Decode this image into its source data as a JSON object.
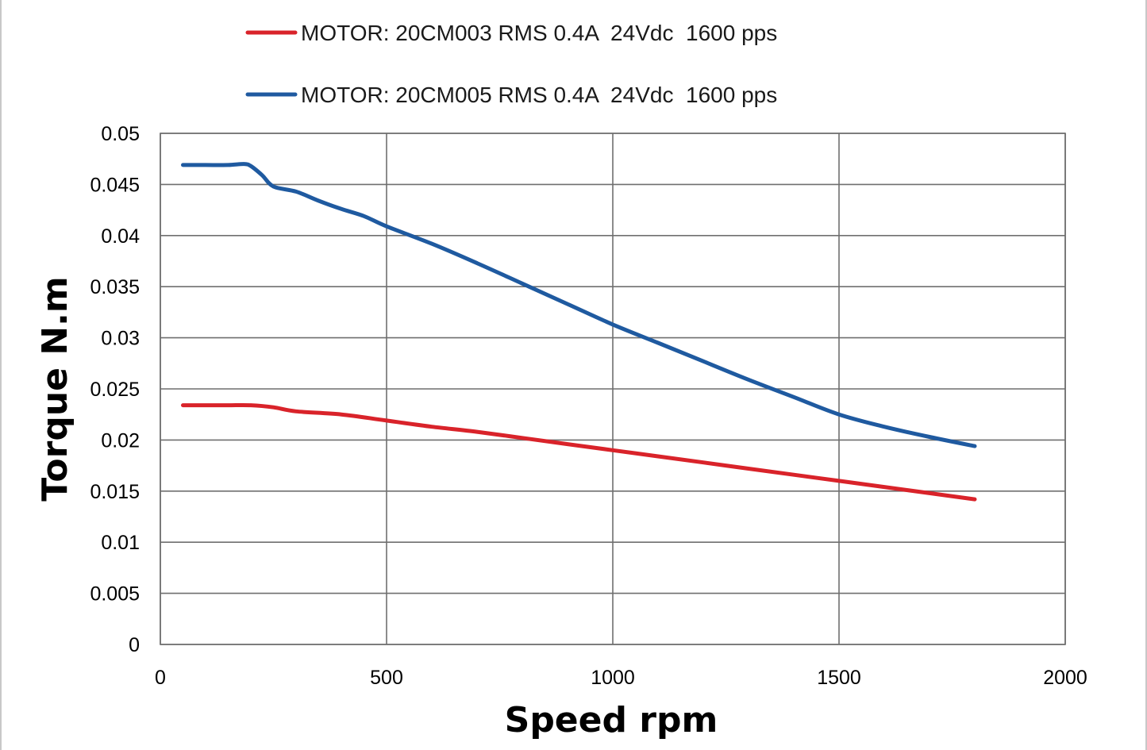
{
  "chart_data": {
    "type": "line",
    "xlabel": "Speed rpm",
    "ylabel": "Torque N.m",
    "xlim": [
      0,
      2000
    ],
    "ylim": [
      0,
      0.05
    ],
    "x_ticks": [
      0,
      500,
      1000,
      1500,
      2000
    ],
    "y_ticks": [
      0,
      0.005,
      0.01,
      0.015,
      0.02,
      0.025,
      0.03,
      0.035,
      0.04,
      0.045,
      0.05
    ],
    "x_tick_labels": [
      "0",
      "500",
      "1000",
      "1500",
      "2000"
    ],
    "y_tick_labels": [
      "0",
      "0.005",
      "0.01",
      "0.015",
      "0.02",
      "0.025",
      "0.03",
      "0.035",
      "0.04",
      "0.045",
      "0.05"
    ],
    "grid": true,
    "legend_position": "top",
    "series": [
      {
        "name": "MOTOR: 20CM003 RMS 0.4A  24Vdc  1600 pps",
        "color": "#d9232a",
        "x": [
          50,
          100,
          150,
          200,
          250,
          300,
          400,
          500,
          600,
          700,
          800,
          900,
          1000,
          1100,
          1200,
          1300,
          1400,
          1500,
          1600,
          1700,
          1800
        ],
        "y": [
          0.0234,
          0.0234,
          0.0234,
          0.0234,
          0.0232,
          0.0228,
          0.0225,
          0.0219,
          0.0213,
          0.0208,
          0.0202,
          0.0196,
          0.019,
          0.0184,
          0.0178,
          0.0172,
          0.0166,
          0.016,
          0.0154,
          0.0148,
          0.0142
        ]
      },
      {
        "name": "MOTOR: 20CM005 RMS 0.4A  24Vdc  1600 pps",
        "color": "#1f5aa0",
        "x": [
          50,
          100,
          150,
          185,
          200,
          225,
          250,
          300,
          350,
          400,
          450,
          500,
          600,
          700,
          800,
          900,
          1000,
          1100,
          1200,
          1300,
          1400,
          1500,
          1600,
          1700,
          1800
        ],
        "y": [
          0.0469,
          0.0469,
          0.0469,
          0.047,
          0.0468,
          0.0459,
          0.0448,
          0.0443,
          0.0434,
          0.0426,
          0.0419,
          0.0409,
          0.0392,
          0.0373,
          0.0353,
          0.0333,
          0.0313,
          0.0295,
          0.0277,
          0.0259,
          0.0242,
          0.0225,
          0.0213,
          0.0203,
          0.0194
        ]
      }
    ]
  }
}
